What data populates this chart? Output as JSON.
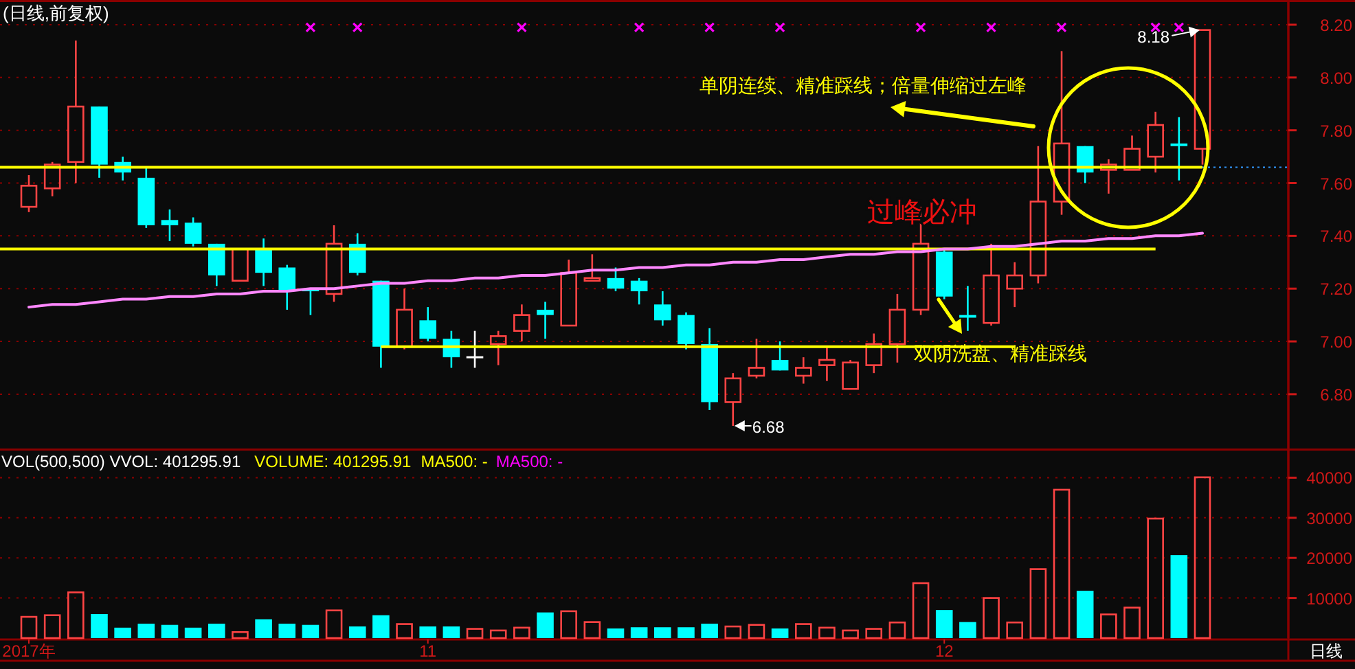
{
  "chart_data": [
    {
      "type": "candlestick",
      "title": "(日线,前复权)",
      "categories": [
        null,
        null,
        null,
        null,
        null,
        null,
        null,
        null,
        null,
        null,
        null,
        null,
        null,
        null,
        null,
        null,
        null,
        null,
        null,
        null,
        null,
        null,
        null,
        null,
        null,
        null,
        null,
        null,
        null,
        null,
        null,
        null,
        null,
        null,
        null,
        null,
        null,
        null,
        null,
        null,
        null,
        null,
        null,
        null,
        null,
        null,
        null,
        null,
        null,
        null,
        null
      ],
      "ohlc": [
        [
          7.51,
          7.63,
          7.49,
          7.59
        ],
        [
          7.58,
          7.68,
          7.55,
          7.67
        ],
        [
          7.68,
          8.14,
          7.6,
          7.89
        ],
        [
          7.89,
          7.89,
          7.62,
          7.67
        ],
        [
          7.68,
          7.7,
          7.61,
          7.64
        ],
        [
          7.62,
          7.66,
          7.43,
          7.44
        ],
        [
          7.46,
          7.5,
          7.38,
          7.44
        ],
        [
          7.45,
          7.47,
          7.36,
          7.37
        ],
        [
          7.37,
          7.37,
          7.21,
          7.25
        ],
        [
          7.23,
          7.35,
          7.23,
          7.35
        ],
        [
          7.35,
          7.39,
          7.21,
          7.26
        ],
        [
          7.28,
          7.29,
          7.12,
          7.19
        ],
        [
          7.2,
          7.2,
          7.1,
          7.19
        ],
        [
          7.18,
          7.44,
          7.15,
          7.37
        ],
        [
          7.37,
          7.41,
          7.25,
          7.26
        ],
        [
          7.23,
          7.23,
          6.9,
          6.98
        ],
        [
          6.98,
          7.2,
          6.97,
          7.12
        ],
        [
          7.08,
          7.13,
          7.0,
          7.01
        ],
        [
          7.01,
          7.04,
          6.9,
          6.94
        ],
        [
          6.94,
          7.04,
          6.9,
          6.94
        ],
        [
          6.99,
          7.04,
          6.91,
          7.02
        ],
        [
          7.04,
          7.14,
          7.0,
          7.1
        ],
        [
          7.12,
          7.15,
          7.01,
          7.1
        ],
        [
          7.06,
          7.31,
          7.06,
          7.26
        ],
        [
          7.23,
          7.33,
          7.23,
          7.24
        ],
        [
          7.24,
          7.28,
          7.19,
          7.2
        ],
        [
          7.23,
          7.24,
          7.14,
          7.19
        ],
        [
          7.14,
          7.19,
          7.06,
          7.08
        ],
        [
          7.1,
          7.11,
          6.97,
          6.99
        ],
        [
          6.99,
          7.05,
          6.74,
          6.77
        ],
        [
          6.77,
          6.88,
          6.68,
          6.86
        ],
        [
          6.87,
          7.01,
          6.86,
          6.9
        ],
        [
          6.93,
          7.0,
          6.89,
          6.89
        ],
        [
          6.87,
          6.94,
          6.84,
          6.9
        ],
        [
          6.91,
          6.98,
          6.85,
          6.93
        ],
        [
          6.82,
          6.93,
          6.82,
          6.92
        ],
        [
          6.91,
          7.03,
          6.88,
          6.99
        ],
        [
          6.99,
          7.18,
          6.92,
          7.12
        ],
        [
          7.12,
          7.51,
          7.1,
          7.37
        ],
        [
          7.34,
          7.35,
          7.16,
          7.17
        ],
        [
          7.1,
          7.21,
          7.04,
          7.09
        ],
        [
          7.07,
          7.37,
          7.06,
          7.25
        ],
        [
          7.2,
          7.3,
          7.13,
          7.25
        ],
        [
          7.25,
          7.74,
          7.22,
          7.53
        ],
        [
          7.53,
          8.1,
          7.48,
          7.75
        ],
        [
          7.74,
          7.74,
          7.6,
          7.64
        ],
        [
          7.65,
          7.69,
          7.56,
          7.67
        ],
        [
          7.65,
          7.78,
          7.65,
          7.73
        ],
        [
          7.7,
          7.87,
          7.64,
          7.82
        ],
        [
          7.75,
          7.85,
          7.61,
          7.74
        ],
        [
          7.73,
          8.18,
          7.67,
          8.18
        ]
      ],
      "colors": [
        "#ff4444",
        "#ff4444",
        "#ff4444",
        "#00ffff",
        "#00ffff",
        "#00ffff",
        "#00ffff",
        "#00ffff",
        "#00ffff",
        "#ff4444",
        "#00ffff",
        "#00ffff",
        "#00ffff",
        "#ff4444",
        "#00ffff",
        "#00ffff",
        "#ff4444",
        "#00ffff",
        "#00ffff",
        "#ffffff",
        "#ff4444",
        "#ff4444",
        "#00ffff",
        "#ff4444",
        "#ff4444",
        "#00ffff",
        "#00ffff",
        "#00ffff",
        "#00ffff",
        "#00ffff",
        "#ff4444",
        "#ff4444",
        "#00ffff",
        "#ff4444",
        "#ff4444",
        "#ff4444",
        "#ff4444",
        "#ff4444",
        "#ff4444",
        "#00ffff",
        "#00ffff",
        "#ff4444",
        "#ff4444",
        "#ff4444",
        "#ff4444",
        "#00ffff",
        "#ff4444",
        "#ff4444",
        "#ff4444",
        "#00ffff",
        "#ff4444"
      ],
      "ylim": [
        6.59,
        8.29
      ],
      "yticks": [
        {
          "value": 6.8,
          "label": "6.80"
        },
        {
          "value": 7.0,
          "label": "7.00"
        },
        {
          "value": 7.2,
          "label": "7.20"
        },
        {
          "value": 7.4,
          "label": "7.40"
        },
        {
          "value": 7.6,
          "label": "7.60"
        },
        {
          "value": 7.8,
          "label": "7.80"
        },
        {
          "value": 8.0,
          "label": "8.00"
        },
        {
          "value": 8.2,
          "label": "8.20"
        }
      ],
      "grid": "y",
      "tick_labels": "y",
      "series": [
        {
          "type": "line",
          "color": "#ff88ff",
          "values": [
            7.13,
            7.14,
            7.14,
            7.15,
            7.16,
            7.16,
            7.17,
            7.17,
            7.18,
            7.18,
            7.19,
            7.19,
            7.2,
            7.2,
            7.21,
            7.22,
            7.22,
            7.23,
            7.23,
            7.24,
            7.24,
            7.25,
            7.25,
            7.26,
            7.27,
            7.27,
            7.28,
            7.28,
            7.29,
            7.29,
            7.3,
            7.3,
            7.31,
            7.31,
            7.32,
            7.33,
            7.33,
            7.34,
            7.34,
            7.35,
            7.35,
            7.36,
            7.36,
            7.37,
            7.38,
            7.38,
            7.39,
            7.39,
            7.4,
            7.4,
            7.41
          ]
        },
        {
          "type": "scatter",
          "marker": "cross",
          "color": "#ff00ff",
          "values": [
            null,
            null,
            null,
            null,
            null,
            null,
            null,
            null,
            null,
            null,
            null,
            null,
            8.19,
            null,
            8.19,
            null,
            null,
            null,
            null,
            null,
            null,
            8.19,
            null,
            null,
            null,
            null,
            8.19,
            null,
            null,
            8.19,
            null,
            null,
            8.19,
            null,
            null,
            null,
            null,
            null,
            8.19,
            null,
            null,
            8.19,
            null,
            null,
            8.19,
            null,
            null,
            null,
            8.19,
            8.19,
            null
          ]
        }
      ],
      "ref_lines": [
        {
          "axis": "y",
          "value": 7.66,
          "color": "#ffff00"
        },
        {
          "axis": "y",
          "value": 7.35,
          "color": "#ffff00"
        },
        {
          "axis": "y",
          "value": 6.98,
          "color": "#ffff00"
        }
      ],
      "annotations": [
        {
          "text": "8.18",
          "y": 8.18
        },
        "6.68",
        "单阴连续、精准踩线；倍量伸缩过左峰",
        "过峰必冲",
        "双阴洗盘、精准踩线"
      ]
    },
    {
      "type": "bar",
      "title": "VOL(500,500) VVOL: 401295.91",
      "categories": [
        "2017年",
        null,
        null,
        null,
        null,
        null,
        null,
        null,
        null,
        null,
        null,
        null,
        null,
        null,
        null,
        null,
        null,
        "11",
        null,
        null,
        null,
        null,
        null,
        null,
        null,
        null,
        null,
        null,
        null,
        null,
        null,
        null,
        null,
        null,
        null,
        null,
        null,
        null,
        null,
        "12",
        null,
        null,
        null,
        null,
        null,
        null,
        null,
        null,
        null,
        null,
        null
      ],
      "values": [
        5300,
        5700,
        11400,
        6000,
        2600,
        3600,
        3300,
        2600,
        3600,
        1500,
        4700,
        3600,
        3300,
        6900,
        2900,
        5700,
        3500,
        2900,
        2900,
        2300,
        1900,
        2600,
        6400,
        6700,
        4000,
        2400,
        2700,
        2700,
        2700,
        3600,
        2900,
        3300,
        2400,
        3500,
        2600,
        1900,
        2300,
        3900,
        13700,
        7000,
        4000,
        10000,
        3900,
        17200,
        37000,
        11800,
        5900,
        7600,
        29800,
        20700,
        40100
      ],
      "colors": [
        "#ff4444",
        "#ff4444",
        "#ff4444",
        "#00ffff",
        "#00ffff",
        "#00ffff",
        "#00ffff",
        "#00ffff",
        "#00ffff",
        "#ff4444",
        "#00ffff",
        "#00ffff",
        "#00ffff",
        "#ff4444",
        "#00ffff",
        "#00ffff",
        "#ff4444",
        "#00ffff",
        "#00ffff",
        "#ff4444",
        "#ff4444",
        "#ff4444",
        "#00ffff",
        "#ff4444",
        "#ff4444",
        "#00ffff",
        "#00ffff",
        "#00ffff",
        "#00ffff",
        "#00ffff",
        "#ff4444",
        "#ff4444",
        "#00ffff",
        "#ff4444",
        "#ff4444",
        "#ff4444",
        "#ff4444",
        "#ff4444",
        "#ff4444",
        "#00ffff",
        "#00ffff",
        "#ff4444",
        "#ff4444",
        "#ff4444",
        "#ff4444",
        "#00ffff",
        "#ff4444",
        "#ff4444",
        "#ff4444",
        "#00ffff",
        "#ff4444"
      ],
      "ylim": [
        0,
        47000
      ],
      "yticks": [
        10000,
        20000,
        30000,
        40000
      ],
      "grid": "y",
      "annotations": [
        "VOLUME: 401295.91",
        "MA500: -",
        "MA500: -",
        "日线"
      ]
    }
  ]
}
